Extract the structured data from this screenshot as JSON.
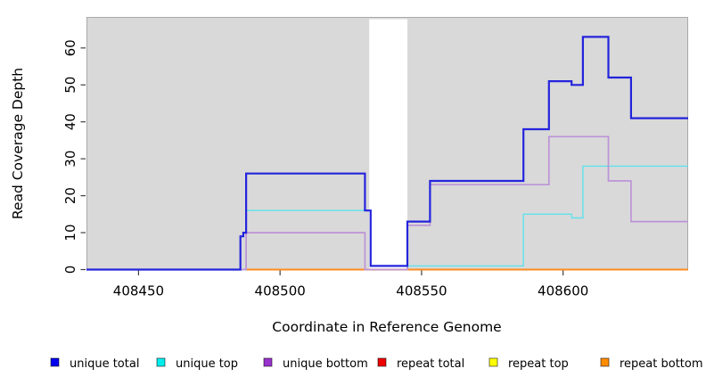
{
  "chart_data": {
    "type": "line",
    "subtype": "step-coverage-plot",
    "title": "",
    "xlabel": "Coordinate in Reference Genome",
    "ylabel": "Read Coverage Depth",
    "xlim": [
      408431.6,
      408644.2
    ],
    "ylim": [
      0,
      68.4
    ],
    "x_ticks": [
      408450,
      408500,
      408550,
      408600
    ],
    "y_ticks": [
      0,
      10,
      20,
      30,
      40,
      50,
      60
    ],
    "grid": false,
    "legend_position": "bottom",
    "background_band": {
      "color": "#d9d9d9",
      "border_color": "#a9a9a9",
      "x_start": 408431.6,
      "x_end": 408644.2
    },
    "gap_region": {
      "color": "#ffffff",
      "x_start": 408531.5,
      "x_end": 408545
    },
    "series": [
      {
        "name": "unique total",
        "line_color": "#2424dd",
        "legend_color": "#0000ee",
        "line_width": 2.2,
        "z": 6,
        "steps": [
          [
            408431.6,
            0
          ],
          [
            408486,
            9
          ],
          [
            408487,
            10
          ],
          [
            408488,
            26
          ],
          [
            408530,
            16
          ],
          [
            408532,
            1
          ],
          [
            408545,
            13
          ],
          [
            408553,
            24
          ],
          [
            408586,
            38
          ],
          [
            408595,
            51
          ],
          [
            408603,
            50
          ],
          [
            408607,
            63
          ],
          [
            408616,
            52
          ],
          [
            408624,
            41
          ]
        ]
      },
      {
        "name": "unique top",
        "line_color": "#5fe2ec",
        "legend_color": "#00eeee",
        "line_width": 1.4,
        "z": 4,
        "steps": [
          [
            408485.5,
            0
          ],
          [
            408488,
            16
          ],
          [
            408532,
            1
          ],
          [
            408586,
            15
          ],
          [
            408603,
            14
          ],
          [
            408607,
            28
          ]
        ]
      },
      {
        "name": "unique bottom",
        "line_color": "#bd93d8",
        "legend_color": "#9932cc",
        "line_width": 1.7,
        "z": 5,
        "steps": [
          [
            408431.6,
            0
          ],
          [
            408488,
            10
          ],
          [
            408530,
            0
          ],
          [
            408545,
            12
          ],
          [
            408553,
            23
          ],
          [
            408595,
            36
          ],
          [
            408616,
            24
          ],
          [
            408624,
            13
          ]
        ]
      },
      {
        "name": "repeat total",
        "line_color": "#dd2222",
        "legend_color": "#ee0000",
        "line_width": 1.2,
        "z": 1,
        "steps": [
          [
            408488,
            0
          ]
        ]
      },
      {
        "name": "repeat top",
        "line_color": "#f0f000",
        "legend_color": "#ffff00",
        "line_width": 1.2,
        "z": 2,
        "steps": [
          [
            408488,
            0
          ]
        ]
      },
      {
        "name": "repeat bottom",
        "line_color": "#ff8c1e",
        "legend_color": "#ff8c00",
        "line_width": 1.9,
        "z": 3,
        "steps": [
          [
            408488,
            0
          ]
        ]
      }
    ]
  }
}
